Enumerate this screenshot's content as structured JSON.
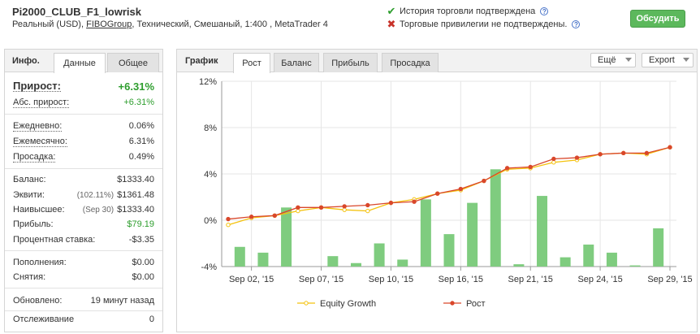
{
  "header": {
    "title": "Pi2000_CLUB_F1_lowrisk",
    "subtitle_pre": "Реальный (USD), ",
    "subtitle_link": "FIBOGroup",
    "subtitle_post": ", Технический, Смешаный, 1:400 , MetaTrader 4",
    "history_verified": "История торговли подтверждена",
    "privileges_not_verified": "Торговые привилегии не подтверждены.",
    "discuss_button": "Обсудить",
    "colors": {
      "ok": "#2e9e2e",
      "fail": "#c8332a",
      "button": "#5cb85c"
    }
  },
  "left_panel": {
    "label": "Инфо.",
    "tabs": [
      "Данные",
      "Общее"
    ],
    "active_tab": "Данные",
    "gain_label": "Прирост:",
    "gain_value": "+6.31%",
    "abs_gain_label": "Абс. прирост:",
    "abs_gain_value": "+6.31%",
    "daily_label": "Ежедневно:",
    "daily_value": "0.06%",
    "monthly_label": "Ежемесячно:",
    "monthly_value": "6.31%",
    "drawdown_label": "Просадка:",
    "drawdown_value": "0.49%",
    "balance_label": "Баланс:",
    "balance_value": "$1333.40",
    "equity_label": "Эквити:",
    "equity_pre": "(102.11%)",
    "equity_value": "$1361.48",
    "highest_label": "Наивысшее:",
    "highest_pre": "(Sep 30)",
    "highest_value": "$1333.40",
    "profit_label": "Прибыль:",
    "profit_value": "$79.19",
    "interest_label": "Процентная ставка:",
    "interest_value": "-$3.35",
    "deposits_label": "Пополнения:",
    "deposits_value": "$0.00",
    "withdrawals_label": "Снятия:",
    "withdrawals_value": "$0.00",
    "updated_label": "Обновлено:",
    "updated_value": "19 минут назад",
    "tracking_label": "Отслеживание",
    "tracking_value": "0"
  },
  "right_panel": {
    "label": "График",
    "tabs": [
      "Рост",
      "Баланс",
      "Прибыль",
      "Просадка"
    ],
    "active_tab": "Рост",
    "more_dropdown": "Ещё",
    "export_dropdown": "Export"
  },
  "chart_data": {
    "type": "line",
    "ylim": [
      -4,
      12
    ],
    "y_ticks": [
      -4,
      0,
      4,
      8,
      12
    ],
    "y_tick_labels": [
      "-4%",
      "0%",
      "4%",
      "8%",
      "12%"
    ],
    "x_tick_labels": [
      "Sep 02, '15",
      "Sep 07, '15",
      "Sep 10, '15",
      "Sep 16, '15",
      "Sep 21, '15",
      "Sep 24, '15",
      "Sep 29, '15"
    ],
    "x_tick_index": [
      1,
      4,
      7,
      10,
      13,
      16,
      19
    ],
    "grid": true,
    "legend_position": "bottom",
    "series": [
      {
        "name": "Equity Growth",
        "color": "#f4c20d",
        "values": [
          -0.4,
          0.2,
          0.4,
          0.8,
          1.1,
          0.9,
          0.8,
          1.5,
          1.8,
          2.3,
          2.6,
          3.4,
          4.4,
          4.5,
          5.0,
          5.2,
          5.7,
          5.8,
          5.7,
          6.3
        ]
      },
      {
        "name": "Рост",
        "color": "#d9472b",
        "values": [
          0.1,
          0.3,
          0.4,
          1.1,
          1.1,
          1.2,
          1.3,
          1.5,
          1.6,
          2.3,
          2.7,
          3.4,
          4.5,
          4.6,
          5.3,
          5.4,
          5.7,
          5.8,
          5.8,
          6.3
        ]
      }
    ],
    "bars": {
      "color": "#7fcc7f",
      "values": [
        -2.3,
        -2.8,
        1.1,
        0,
        -3.1,
        -3.7,
        -2.0,
        -3.4,
        1.8,
        -1.2,
        1.5,
        4.4,
        -3.8,
        2.1,
        -3.2,
        -2.1,
        -2.8,
        -3.9,
        -0.7
      ]
    }
  }
}
